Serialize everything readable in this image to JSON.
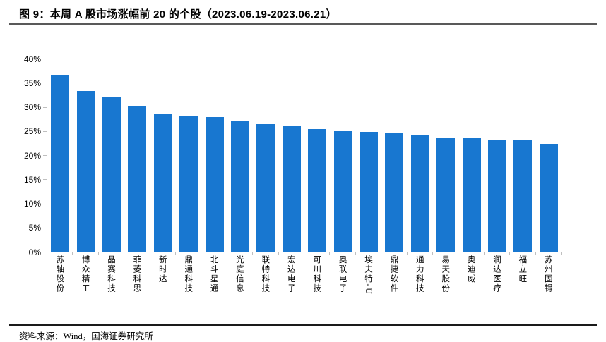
{
  "header": {
    "title": "图 9：本周 A 股市场涨幅前 20 的个股（2023.06.19-2023.06.21）"
  },
  "footer": {
    "source": "资料来源：Wind，国海证券研究所"
  },
  "chart_data": {
    "type": "bar",
    "title": "本周A股市场涨幅前20的个股（2023.06.19-2023.06.21）",
    "categories": [
      "苏轴股份",
      "博众精工",
      "晶赛科技",
      "菲菱科思",
      "新时达",
      "鼎通科技",
      "北斗星通",
      "光庭信息",
      "联特科技",
      "宏达电子",
      "可川科技",
      "奥联电子",
      "埃夫特-U",
      "鼎捷软件",
      "通力科技",
      "易天股份",
      "奥迪威",
      "润达医疗",
      "福立旺",
      "苏州固锝"
    ],
    "values": [
      36.5,
      33.3,
      32.0,
      30.1,
      28.5,
      28.2,
      27.9,
      27.2,
      26.4,
      26.0,
      25.4,
      25.0,
      24.8,
      24.6,
      24.1,
      23.6,
      23.5,
      23.1,
      23.0,
      22.4
    ],
    "unit": "%",
    "xlabel": "",
    "ylabel": "",
    "ylim": [
      0,
      40
    ],
    "ytick_step": 5,
    "ytick_suffix": "%",
    "grid": false,
    "legend": false,
    "bar_color": "#1877d0",
    "axis_color": "#bfbfbf"
  }
}
